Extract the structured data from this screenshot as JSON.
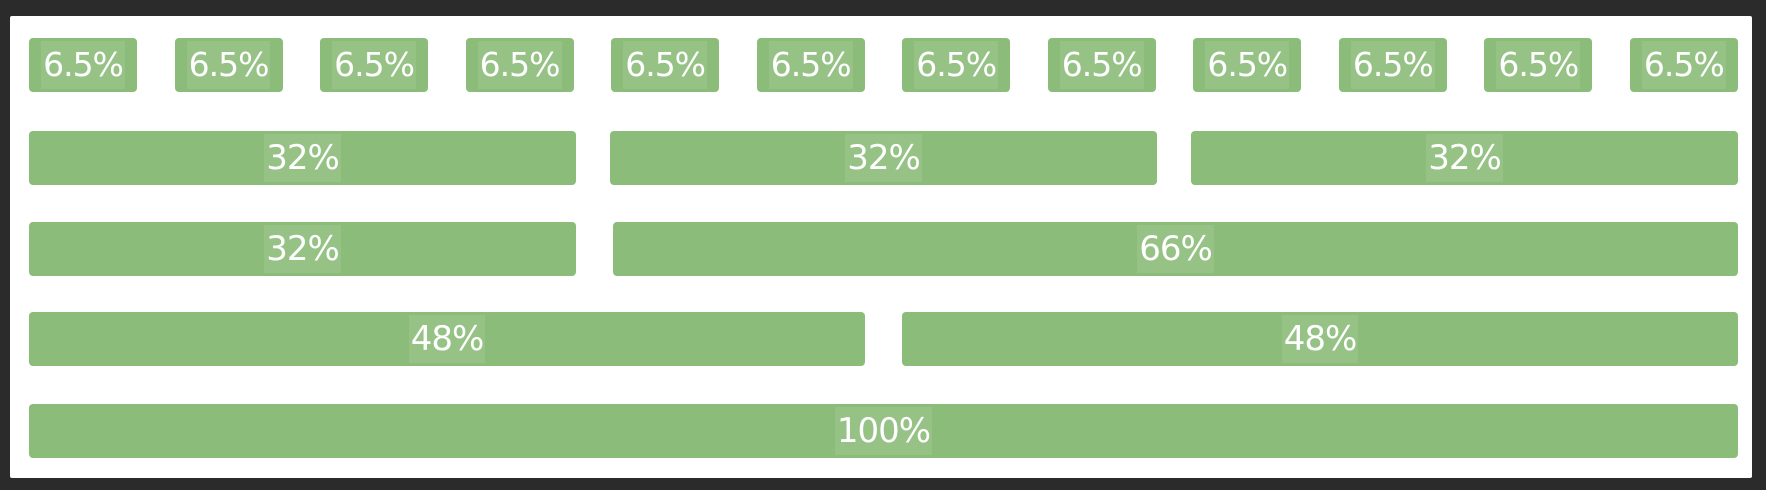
{
  "colors": {
    "cell": "#8bbc79",
    "label": "#ffffff",
    "frame": "#ffffff",
    "background": "#2b2b2b"
  },
  "rows": [
    {
      "cells": [
        "6.5%",
        "6.5%",
        "6.5%",
        "6.5%",
        "6.5%",
        "6.5%",
        "6.5%",
        "6.5%",
        "6.5%",
        "6.5%",
        "6.5%",
        "6.5%"
      ]
    },
    {
      "cells": [
        "32%",
        "32%",
        "32%"
      ]
    },
    {
      "cells": [
        "32%",
        "66%"
      ]
    },
    {
      "cells": [
        "48%",
        "48%"
      ]
    },
    {
      "cells": [
        "100%"
      ]
    }
  ]
}
